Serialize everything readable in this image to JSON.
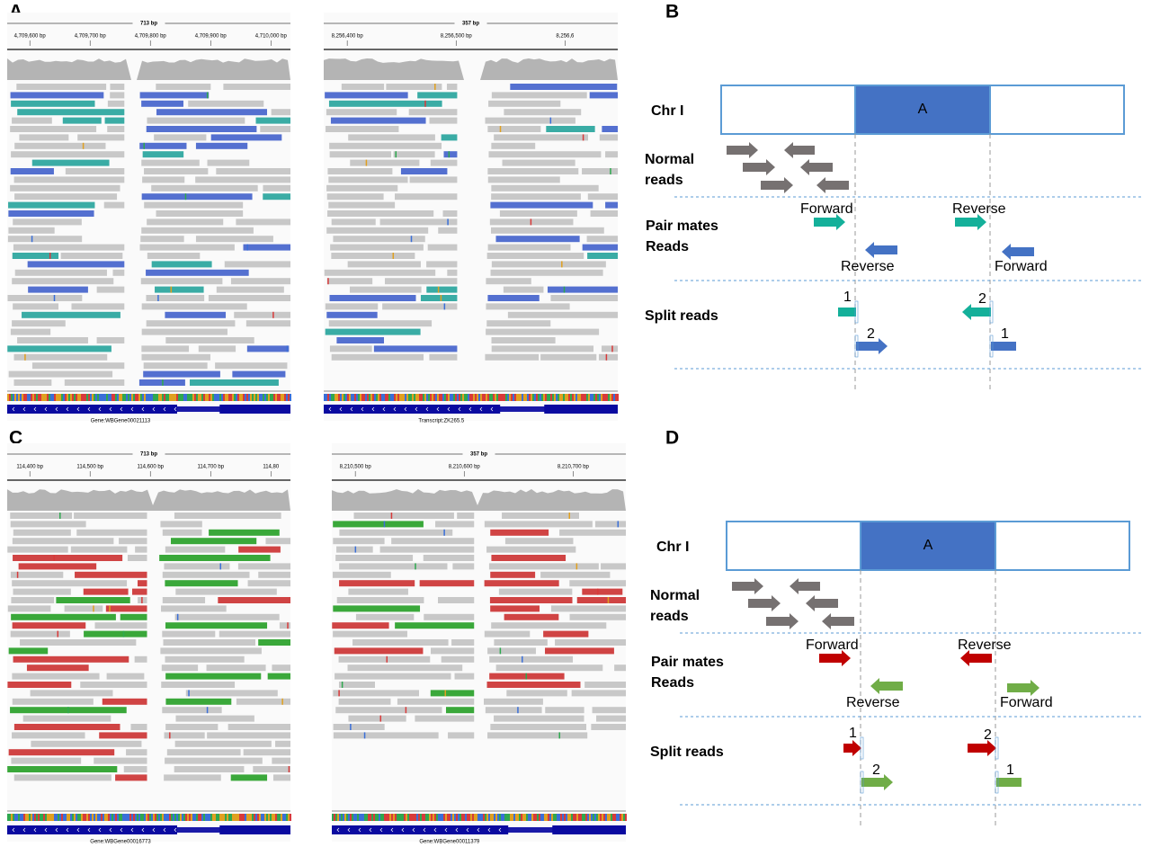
{
  "panel_labels": [
    "A",
    "B",
    "C",
    "D"
  ],
  "igv": [
    {
      "span": "713 bp",
      "ticks": [
        "4,709,600 bp",
        "4,709,700 bp",
        "4,709,800 bp",
        "4,709,900 bp",
        "4,710,000 bp"
      ],
      "gene": "Gene:WBGene00021113"
    },
    {
      "span": "357 bp",
      "ticks": [
        "8,256,400 bp",
        "8,256,500 bp",
        "8,256,6"
      ],
      "gene": "Transcript:ZK265.5"
    },
    {
      "span": "713 bp",
      "ticks": [
        "114,400 bp",
        "114,500 bp",
        "114,600 bp",
        "114,700 bp",
        "114,80"
      ],
      "gene": "Gene:WBGene00016773"
    },
    {
      "span": "357 bp",
      "ticks": [
        "8,210,500 bp",
        "8,210,600 bp",
        "8,210,700 bp"
      ],
      "gene": "Gene:WBGene00011379"
    }
  ],
  "diagrams": [
    {
      "chr": "Chr I",
      "region": "A",
      "normal": [
        "Normal",
        "reads"
      ],
      "pair": [
        "Pair mates",
        "Reads"
      ],
      "pair_labels": [
        "Forward",
        "Reverse",
        "Reverse",
        "Forward"
      ],
      "split": "Split reads",
      "split_labels": [
        "1",
        "2",
        "2",
        "1"
      ]
    },
    {
      "chr": "Chr I",
      "region": "A",
      "normal": [
        "Normal",
        "reads"
      ],
      "pair": [
        "Pair mates",
        "Reads"
      ],
      "pair_labels": [
        "Forward",
        "Reverse",
        "Reverse",
        "Forward"
      ],
      "split": "Split reads",
      "split_labels": [
        "1",
        "2",
        "2",
        "1"
      ]
    }
  ]
}
